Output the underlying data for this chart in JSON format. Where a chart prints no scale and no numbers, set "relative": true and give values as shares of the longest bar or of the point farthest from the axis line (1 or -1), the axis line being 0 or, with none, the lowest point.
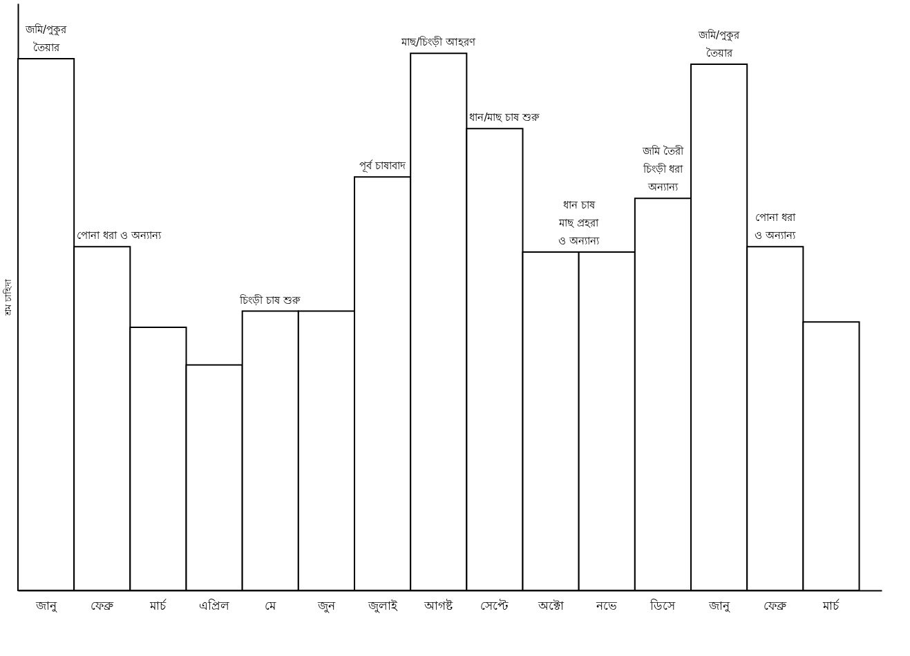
{
  "chart_data": {
    "type": "bar",
    "relative": true,
    "ylabel": "শ্রম চাহিদা",
    "categories": [
      "জানু",
      "ফেব্রু",
      "মার্চ",
      "এপ্রিল",
      "মে",
      "জুন",
      "জুলাই",
      "আগষ্ট",
      "সেপ্টে",
      "অক্টো",
      "নভে",
      "ডিসে",
      "জানু",
      "ফেব্রু",
      "মার্চ"
    ],
    "values": [
      0.99,
      0.64,
      0.49,
      0.42,
      0.52,
      0.52,
      0.77,
      1,
      0.86,
      0.63,
      0.63,
      0.73,
      0.98,
      0.64,
      0.5
    ],
    "color": "#ffffff",
    "annotations": [
      "জমি/পুকুর\nতৈয়ার",
      "পোনা ধরা ও অন্যান্য",
      "চিংড়ী চাষ শুরু",
      "পূর্ব চাষাবাদ",
      "মাছ/চিংড়ী আহরণ",
      "ধান/মাছ চাষ শুরু",
      "ধান চাষ\nমাছ প্রহরা\nও অন্যান্য",
      "জমি তৈরী\nচিংড়ী ধরা\nঅন্যান্য",
      "জমি/পুকুর\nতৈয়ার",
      "পোনা ধরা\nও অন্যান্য"
    ]
  }
}
